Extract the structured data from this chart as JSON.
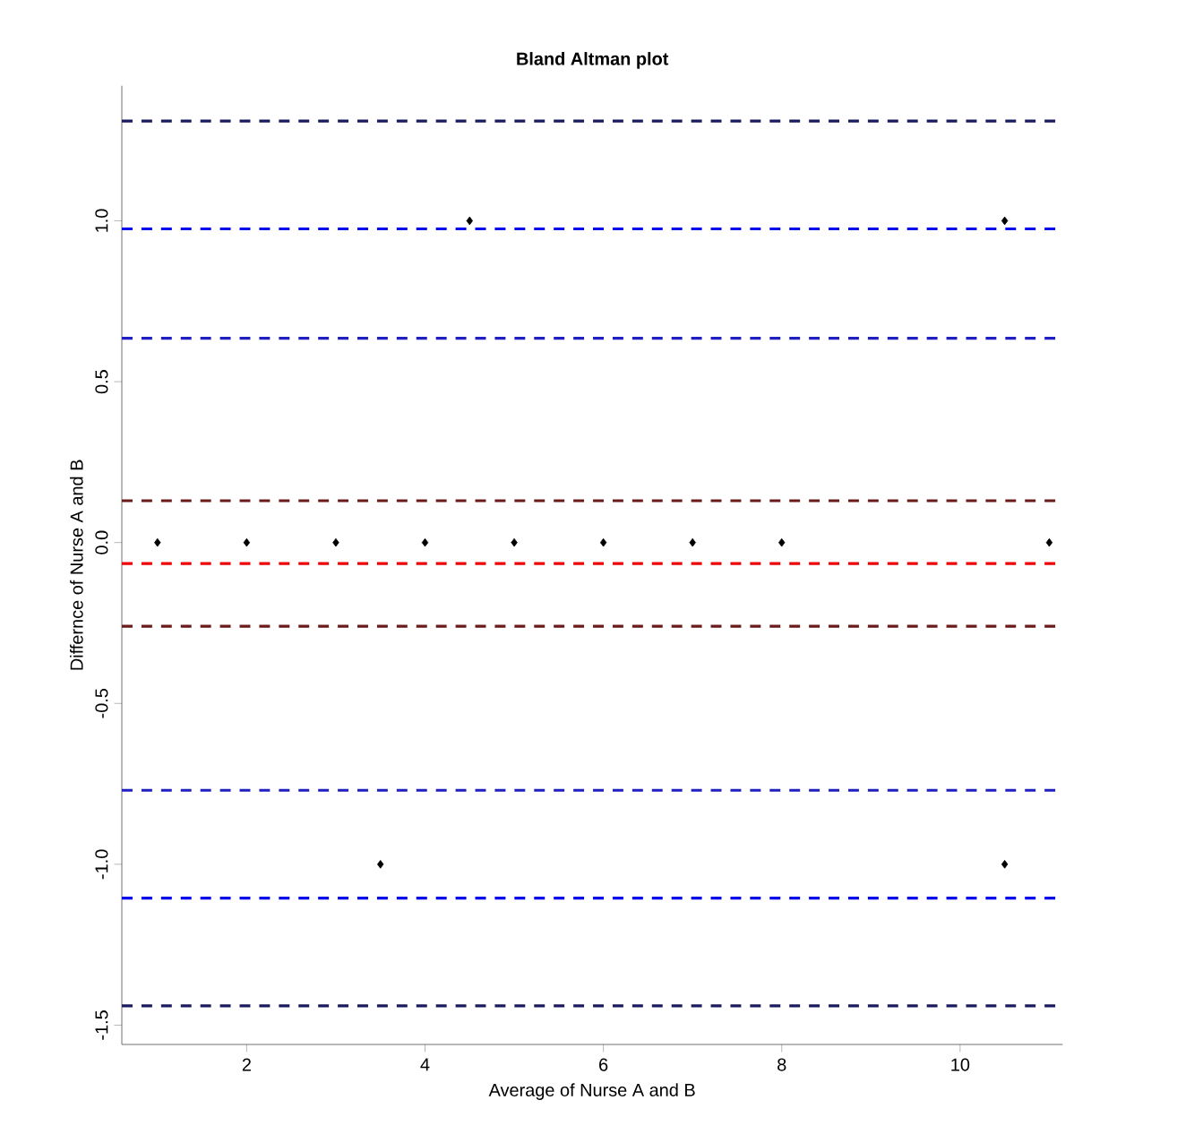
{
  "chart_data": {
    "type": "scatter",
    "title": "Bland Altman plot",
    "xlabel": "Average of Nurse A and B",
    "ylabel": "Differnce of Nurse A and B",
    "x": [
      1,
      2,
      3,
      4,
      5,
      6,
      7,
      8,
      11,
      4.5,
      10.5,
      3.5,
      10.5
    ],
    "series": [
      {
        "color": "#000000",
        "values": [
          0,
          0,
          0,
          0,
          0,
          0,
          0,
          0,
          0,
          1,
          1,
          -1,
          -1
        ]
      }
    ],
    "marker": "diamond",
    "xlim": [
      0.6,
      11.15
    ],
    "ylim": [
      -1.56,
      1.42
    ],
    "xticks": [
      2,
      4,
      6,
      8,
      10
    ],
    "yticks": [
      {
        "value": -1.5,
        "label": "-1.5"
      },
      {
        "value": -1,
        "label": "-1.0"
      },
      {
        "value": -0.5,
        "label": "-0.5"
      },
      {
        "value": 0,
        "label": "0.0"
      },
      {
        "value": 0.5,
        "label": "0.5"
      },
      {
        "value": 1,
        "label": "1.0"
      }
    ],
    "ref_lines": [
      {
        "axis": "y",
        "value": 1.31,
        "color": "#1a1a5e",
        "line_style": "dashed"
      },
      {
        "axis": "y",
        "value": 0.975,
        "color": "#0000ee",
        "line_style": "dashed"
      },
      {
        "axis": "y",
        "value": 0.635,
        "color": "#2020c0",
        "line_style": "dashed"
      },
      {
        "axis": "y",
        "value": 0.13,
        "color": "#6b1a1a",
        "line_style": "dashed"
      },
      {
        "axis": "y",
        "value": -0.065,
        "color": "#ee0000",
        "line_style": "dashed"
      },
      {
        "axis": "y",
        "value": -0.26,
        "color": "#6b1a1a",
        "line_style": "dashed"
      },
      {
        "axis": "y",
        "value": -0.77,
        "color": "#2020c0",
        "line_style": "dashed"
      },
      {
        "axis": "y",
        "value": -1.105,
        "color": "#0000ee",
        "line_style": "dashed"
      },
      {
        "axis": "y",
        "value": -1.44,
        "color": "#1a1a5e",
        "line_style": "dashed"
      }
    ]
  }
}
